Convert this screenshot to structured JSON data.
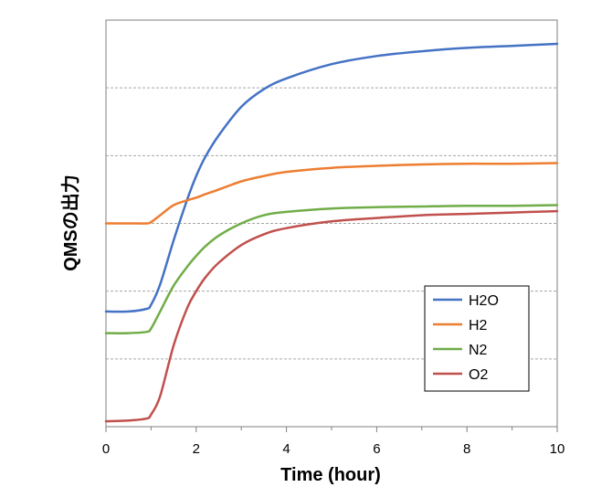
{
  "chart_data": {
    "type": "line",
    "title": "",
    "xlabel": "Time (hour)",
    "ylabel": "QMSの出力",
    "xlim": [
      0,
      10
    ],
    "ylim": [
      0,
      6
    ],
    "x_ticks": [
      0,
      2,
      4,
      6,
      8,
      10
    ],
    "x_tick_labels": [
      "0",
      "2",
      "4",
      "6",
      "8",
      "10"
    ],
    "y_gridlines": [
      1,
      2,
      3,
      4,
      5
    ],
    "y_tick_labels_shown": false,
    "grid": "horizontal dashed",
    "legend_position": "bottom-right",
    "x": [
      0,
      0.5,
      0.9,
      1.0,
      1.2,
      1.5,
      1.8,
      2.0,
      2.2,
      2.5,
      3.0,
      3.5,
      4.0,
      5.0,
      6.0,
      7.0,
      8.0,
      9.0,
      10.0
    ],
    "series": [
      {
        "name": "H2O",
        "color": "#4472c4",
        "values": [
          1.7,
          1.7,
          1.74,
          1.8,
          2.1,
          2.75,
          3.35,
          3.7,
          3.98,
          4.3,
          4.72,
          4.98,
          5.14,
          5.35,
          5.47,
          5.54,
          5.59,
          5.62,
          5.65
        ]
      },
      {
        "name": "H2",
        "color": "#ed7d31",
        "values": [
          3.0,
          3.0,
          3.0,
          3.02,
          3.12,
          3.27,
          3.34,
          3.38,
          3.43,
          3.5,
          3.62,
          3.7,
          3.76,
          3.82,
          3.85,
          3.87,
          3.88,
          3.88,
          3.89
        ]
      },
      {
        "name": "N2",
        "color": "#70ad47",
        "values": [
          1.38,
          1.38,
          1.4,
          1.45,
          1.7,
          2.08,
          2.36,
          2.52,
          2.66,
          2.82,
          3.0,
          3.12,
          3.17,
          3.22,
          3.24,
          3.25,
          3.26,
          3.26,
          3.27
        ]
      },
      {
        "name": "O2",
        "color": "#c0504d",
        "values": [
          0.08,
          0.09,
          0.12,
          0.18,
          0.45,
          1.2,
          1.75,
          2.0,
          2.2,
          2.42,
          2.68,
          2.84,
          2.93,
          3.03,
          3.08,
          3.12,
          3.14,
          3.16,
          3.18
        ]
      }
    ]
  }
}
